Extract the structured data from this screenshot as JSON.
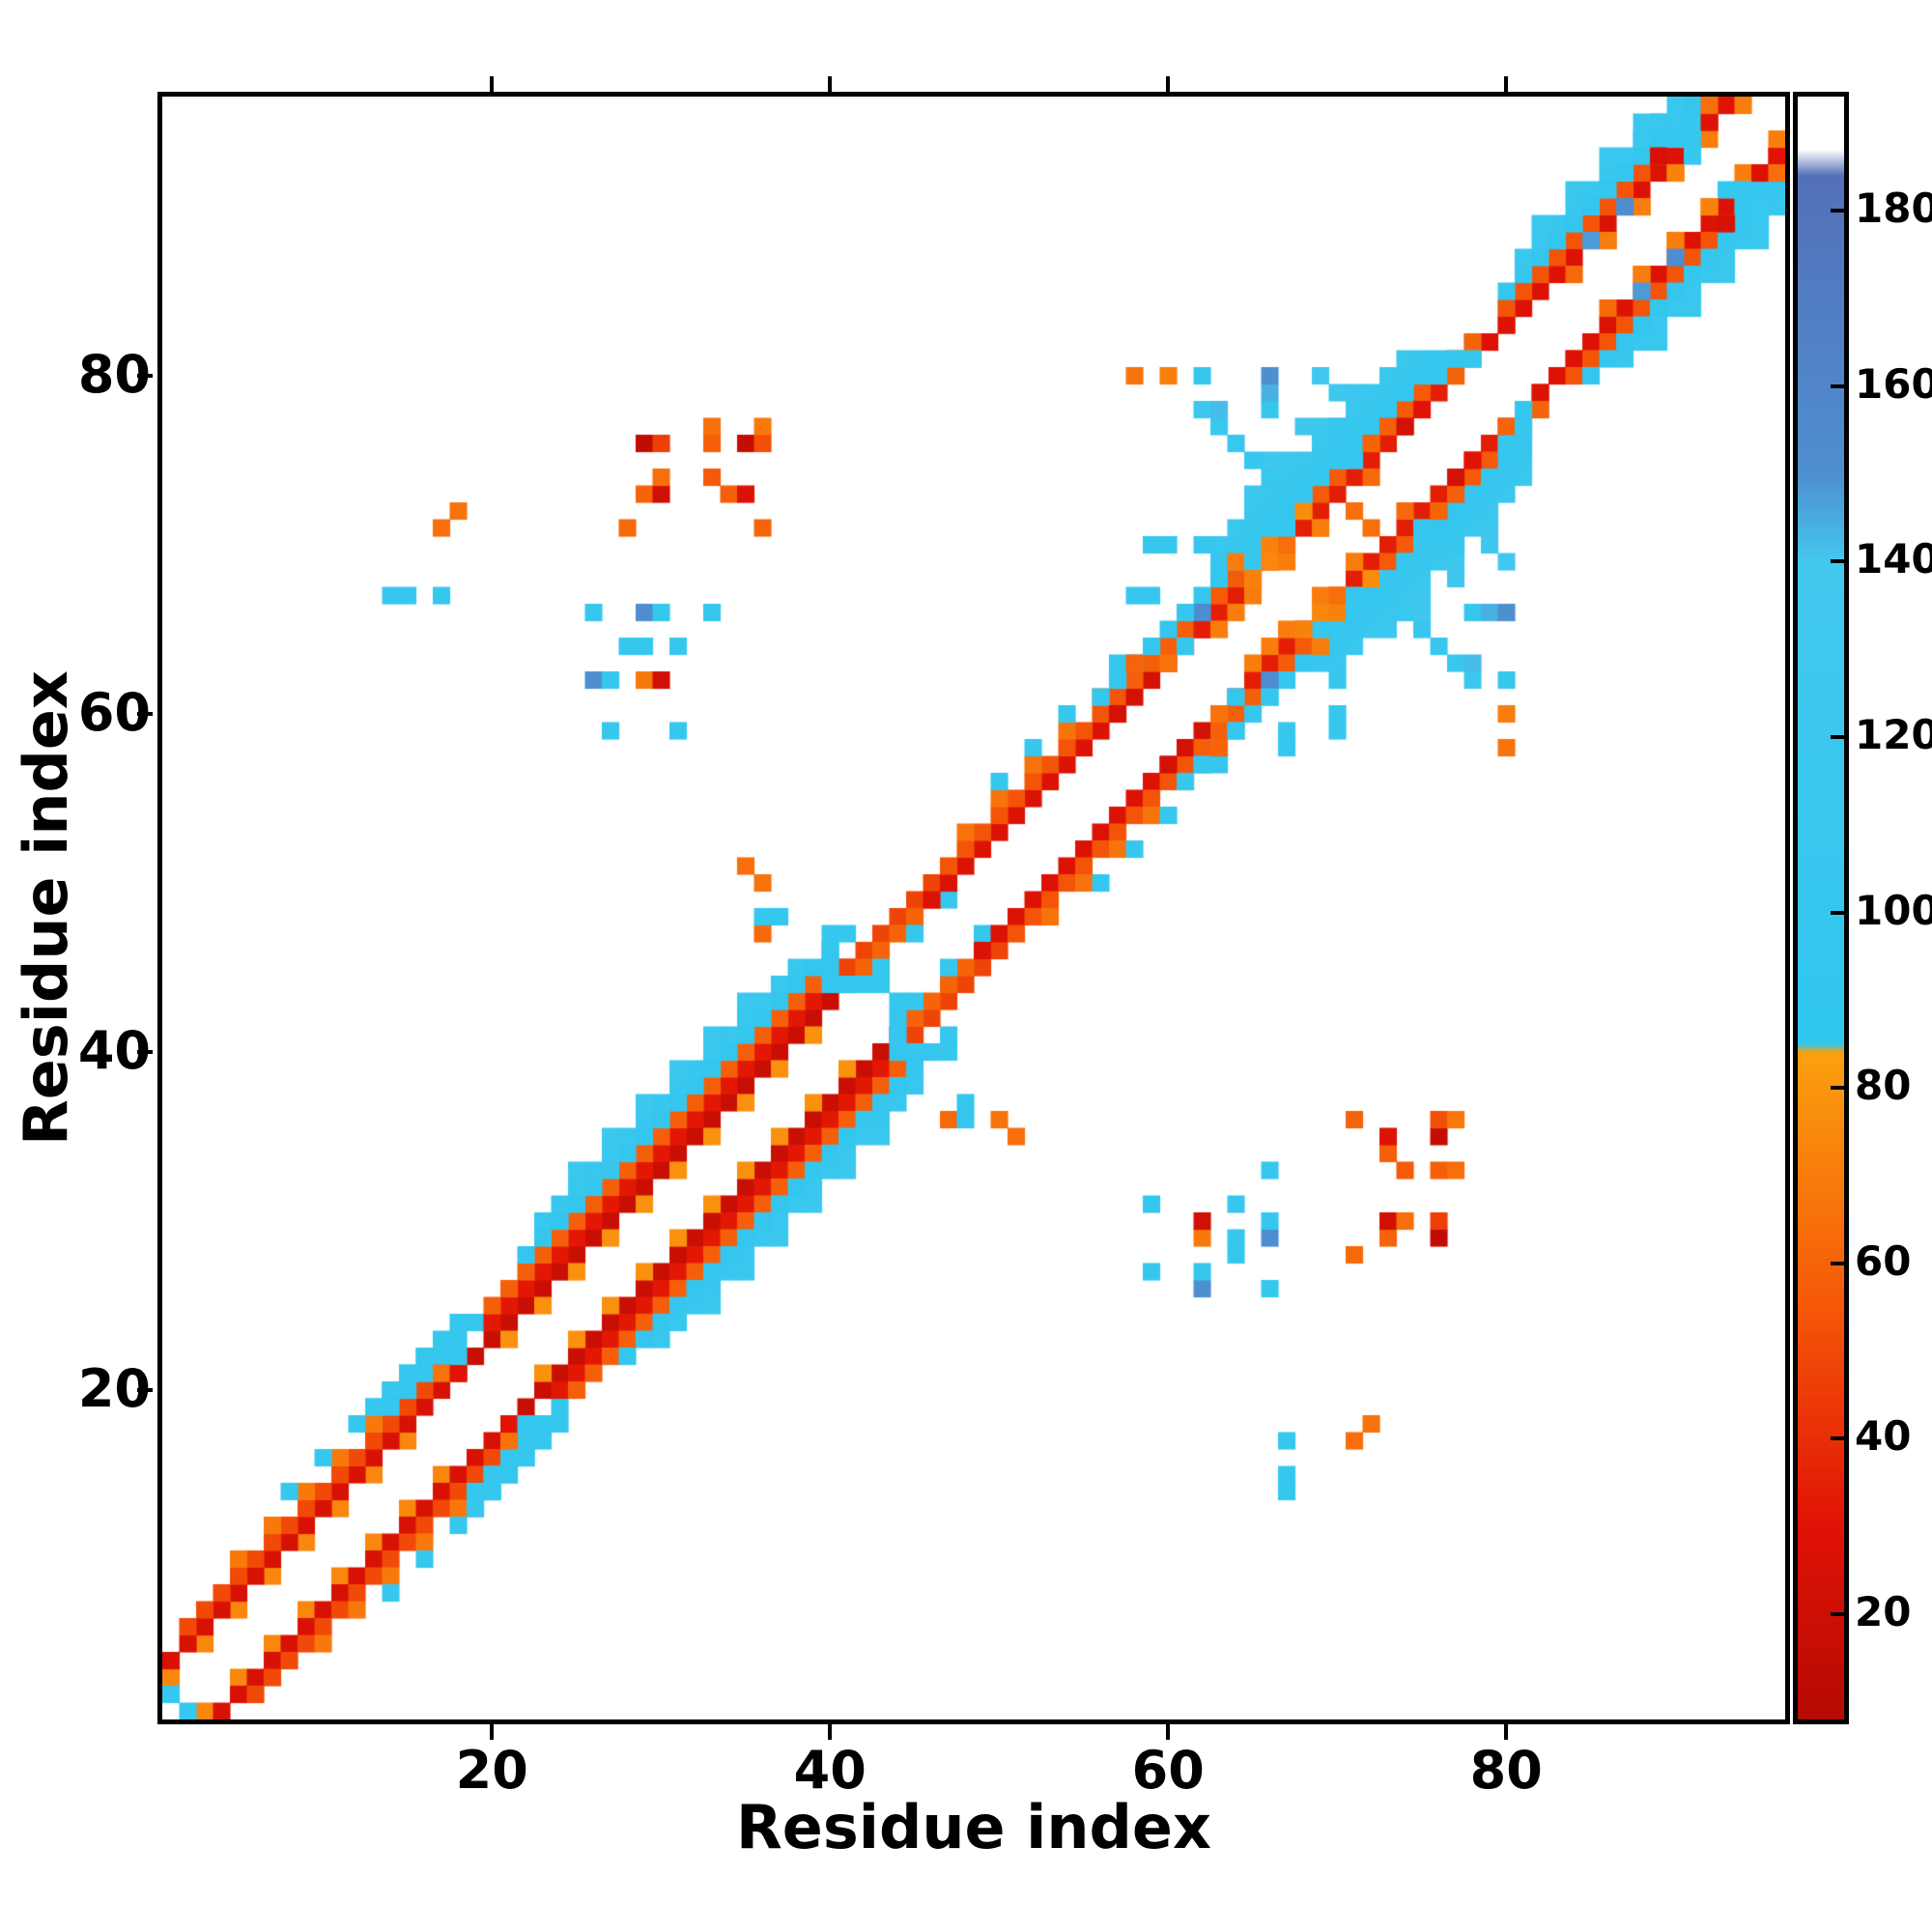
{
  "chart_data": {
    "type": "heatmap",
    "title": "",
    "xlabel": "Residue index",
    "ylabel": "Residue index",
    "x_range": [
      1,
      96
    ],
    "y_range": [
      1,
      96
    ],
    "x_ticks": [
      20,
      40,
      60,
      80
    ],
    "y_ticks": [
      20,
      40,
      60,
      80
    ],
    "grid": false,
    "symmetric": true,
    "background_color": "#ffffff",
    "colorbar": {
      "range": [
        8,
        193
      ],
      "ticks": [
        20,
        40,
        60,
        80,
        100,
        120,
        140,
        160,
        180
      ],
      "position": "right",
      "stops": [
        {
          "v": 8,
          "c": "#b50a04"
        },
        {
          "v": 30,
          "c": "#e01305"
        },
        {
          "v": 55,
          "c": "#f55708"
        },
        {
          "v": 84,
          "c": "#fba00f"
        },
        {
          "v": 85,
          "c": "#30c6ee"
        },
        {
          "v": 140,
          "c": "#44c8ee"
        },
        {
          "v": 150,
          "c": "#4e8fd0"
        },
        {
          "v": 184,
          "c": "#5470b8"
        },
        {
          "v": 187,
          "c": "#ffffff"
        },
        {
          "v": 193,
          "c": "#ffffff"
        }
      ]
    },
    "bands": [
      [
        1,
        16,
        2,
        74,
        2
      ],
      [
        1,
        18,
        3,
        26,
        1
      ],
      [
        2,
        17,
        4,
        50,
        1
      ],
      [
        5,
        16,
        5,
        68,
        2
      ],
      [
        8,
        16,
        6,
        102,
        2
      ],
      [
        13,
        18,
        6,
        100,
        1
      ],
      [
        14,
        19,
        5,
        100,
        1
      ],
      [
        19,
        41,
        3,
        18,
        1
      ],
      [
        20,
        41,
        4,
        32,
        1
      ],
      [
        20,
        40,
        5,
        58,
        1
      ],
      [
        21,
        40,
        2,
        78,
        2
      ],
      [
        22,
        40,
        6,
        98,
        1
      ],
      [
        23,
        38,
        7,
        108,
        1
      ],
      [
        25,
        36,
        8,
        118,
        2
      ],
      [
        41,
        46,
        4,
        48,
        1
      ],
      [
        42,
        46,
        3,
        60,
        1
      ],
      [
        43,
        47,
        2,
        100,
        2
      ],
      [
        46,
        57,
        3,
        28,
        1
      ],
      [
        47,
        57,
        4,
        54,
        1
      ],
      [
        48,
        56,
        5,
        66,
        2
      ],
      [
        50,
        55,
        6,
        100,
        2
      ],
      [
        57,
        62,
        3,
        24,
        1
      ],
      [
        58,
        62,
        4,
        58,
        1
      ],
      [
        57,
        61,
        5,
        98,
        1
      ],
      [
        62,
        77,
        3,
        34,
        1
      ],
      [
        63,
        77,
        4,
        56,
        1
      ],
      [
        62,
        76,
        5,
        96,
        1
      ],
      [
        63,
        75,
        6,
        104,
        1
      ],
      [
        64,
        74,
        7,
        112,
        1
      ],
      [
        65,
        72,
        8,
        120,
        2
      ],
      [
        66,
        71,
        9,
        125,
        2
      ],
      [
        63,
        70,
        2,
        70,
        2
      ],
      [
        76,
        80,
        4,
        100,
        2
      ],
      [
        77,
        81,
        3,
        60,
        1
      ],
      [
        79,
        93,
        3,
        28,
        1
      ],
      [
        80,
        92,
        4,
        54,
        1
      ],
      [
        80,
        91,
        5,
        98,
        1
      ],
      [
        81,
        90,
        6,
        106,
        1
      ],
      [
        82,
        89,
        7,
        112,
        2
      ],
      [
        84,
        89,
        2,
        62,
        2
      ],
      [
        86,
        92,
        2,
        70,
        2
      ],
      [
        90,
        93,
        4,
        100,
        1
      ],
      [
        90,
        94,
        5,
        108,
        2
      ]
    ],
    "cells": [
      [
        1,
        2,
        100
      ],
      [
        13,
        19,
        104
      ],
      [
        14,
        20,
        100
      ],
      [
        15,
        20,
        102
      ],
      [
        15,
        21,
        98
      ],
      [
        16,
        21,
        100
      ],
      [
        17,
        21,
        66
      ],
      [
        18,
        21,
        30
      ],
      [
        18,
        22,
        100
      ],
      [
        40,
        44,
        96
      ],
      [
        41,
        44,
        100
      ],
      [
        42,
        44,
        98
      ],
      [
        43,
        44,
        102
      ],
      [
        40,
        45,
        100
      ],
      [
        40,
        46,
        98
      ],
      [
        40,
        47,
        102
      ],
      [
        41,
        47,
        100
      ],
      [
        36,
        47,
        62
      ],
      [
        36,
        48,
        100
      ],
      [
        37,
        48,
        98
      ],
      [
        36,
        50,
        66
      ],
      [
        35,
        51,
        64
      ],
      [
        56,
        61,
        100
      ],
      [
        57,
        62,
        100
      ],
      [
        57,
        63,
        98
      ],
      [
        58,
        63,
        60
      ],
      [
        59,
        64,
        100
      ],
      [
        62,
        78,
        122
      ],
      [
        63,
        77,
        110
      ],
      [
        64,
        76,
        108
      ],
      [
        65,
        75,
        104
      ],
      [
        66,
        74,
        106
      ],
      [
        67,
        73,
        100
      ],
      [
        68,
        72,
        76
      ],
      [
        69,
        71,
        70
      ],
      [
        59,
        70,
        100
      ],
      [
        60,
        70,
        102
      ],
      [
        62,
        70,
        100
      ],
      [
        63,
        70,
        106
      ],
      [
        65,
        70,
        100
      ],
      [
        66,
        70,
        72
      ],
      [
        58,
        67,
        100
      ],
      [
        59,
        67,
        102
      ],
      [
        61,
        64,
        100
      ],
      [
        60,
        63,
        66
      ],
      [
        64,
        69,
        70
      ],
      [
        65,
        69,
        102
      ],
      [
        66,
        69,
        74
      ],
      [
        67,
        70,
        64
      ],
      [
        66,
        71,
        100
      ],
      [
        67,
        71,
        102
      ],
      [
        68,
        73,
        104
      ],
      [
        69,
        74,
        100
      ],
      [
        70,
        75,
        100
      ],
      [
        71,
        75,
        104
      ],
      [
        70,
        77,
        100
      ],
      [
        71,
        77,
        102
      ],
      [
        72,
        76,
        60
      ],
      [
        73,
        77,
        58
      ],
      [
        74,
        77,
        24
      ],
      [
        75,
        78,
        30
      ],
      [
        71,
        72,
        64
      ],
      [
        72,
        74,
        62
      ],
      [
        63,
        78,
        142
      ],
      [
        66,
        78,
        100
      ],
      [
        66,
        79,
        144
      ],
      [
        58,
        80,
        66
      ],
      [
        60,
        80,
        70
      ],
      [
        62,
        80,
        100
      ],
      [
        66,
        80,
        150
      ],
      [
        69,
        80,
        132
      ],
      [
        62,
        66,
        152
      ],
      [
        61,
        66,
        100
      ],
      [
        64,
        66,
        70
      ],
      [
        65,
        68,
        72
      ],
      [
        29,
        76,
        14
      ],
      [
        30,
        76,
        46
      ],
      [
        33,
        76,
        58
      ],
      [
        35,
        76,
        16
      ],
      [
        36,
        76,
        52
      ],
      [
        33,
        77,
        64
      ],
      [
        36,
        77,
        68
      ],
      [
        29,
        73,
        60
      ],
      [
        30,
        73,
        22
      ],
      [
        34,
        73,
        58
      ],
      [
        35,
        73,
        28
      ],
      [
        30,
        74,
        64
      ],
      [
        33,
        74,
        56
      ],
      [
        28,
        71,
        62
      ],
      [
        36,
        71,
        60
      ],
      [
        17,
        71,
        64
      ],
      [
        18,
        72,
        66
      ],
      [
        27,
        59,
        100
      ],
      [
        31,
        59,
        100
      ],
      [
        26,
        62,
        150
      ],
      [
        27,
        62,
        100
      ],
      [
        29,
        62,
        68
      ],
      [
        30,
        62,
        22
      ],
      [
        28,
        64,
        100
      ],
      [
        29,
        64,
        102
      ],
      [
        31,
        64,
        104
      ],
      [
        26,
        66,
        100
      ],
      [
        29,
        66,
        152
      ],
      [
        30,
        66,
        100
      ],
      [
        33,
        66,
        100
      ],
      [
        14,
        67,
        100
      ],
      [
        15,
        67,
        102
      ],
      [
        17,
        67,
        100
      ],
      [
        85,
        88,
        148
      ],
      [
        87,
        90,
        152
      ],
      [
        89,
        93,
        26
      ],
      [
        92,
        95,
        28
      ],
      [
        93,
        96,
        30
      ],
      [
        91,
        94,
        102
      ],
      [
        92,
        96,
        64
      ],
      [
        94,
        96,
        70
      ],
      [
        90,
        92,
        72
      ],
      [
        91,
        93,
        100
      ],
      [
        88,
        94,
        112
      ],
      [
        89,
        95,
        108
      ],
      [
        77,
        81,
        100
      ],
      [
        78,
        82,
        60
      ],
      [
        78,
        81,
        100
      ]
    ]
  }
}
